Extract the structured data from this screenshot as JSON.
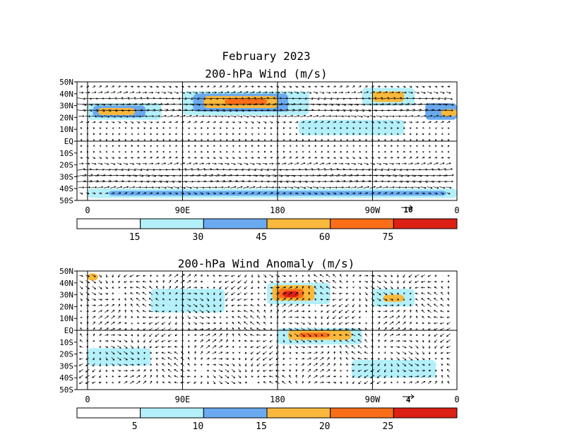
{
  "title": "February 2023",
  "colors": [
    "#ffffff",
    "#b4f0fa",
    "#6aaaf0",
    "#fab93c",
    "#fa6e19",
    "#dc2014",
    "#000000"
  ],
  "chart_data": [
    {
      "type": "heatmap",
      "title": "200-hPa Wind (m/s)",
      "x_ticks": [
        "0",
        "90E",
        "180",
        "90W",
        "0"
      ],
      "y_ticks": [
        "50N",
        "40N",
        "30N",
        "20N",
        "10N",
        "EQ",
        "10S",
        "20S",
        "30S",
        "40S",
        "50S"
      ],
      "vector_ref": "10",
      "colorbar_levels": [
        15,
        30,
        45,
        60,
        75
      ],
      "colorbar_labels": [
        "15",
        "30",
        "45",
        "60",
        "75"
      ],
      "regions": [
        {
          "lon": [
            0,
            70
          ],
          "lat": [
            18,
            32
          ],
          "level": 1
        },
        {
          "lon": [
            5,
            55
          ],
          "lat": [
            20,
            30
          ],
          "level": 2
        },
        {
          "lon": [
            10,
            45
          ],
          "lat": [
            22,
            28
          ],
          "level": 3
        },
        {
          "lon": [
            90,
            210
          ],
          "lat": [
            22,
            42
          ],
          "level": 1
        },
        {
          "lon": [
            100,
            190
          ],
          "lat": [
            25,
            40
          ],
          "level": 2
        },
        {
          "lon": [
            110,
            180
          ],
          "lat": [
            28,
            38
          ],
          "level": 3
        },
        {
          "lon": [
            130,
            170
          ],
          "lat": [
            31,
            36
          ],
          "level": 4
        },
        {
          "lon": [
            260,
            310
          ],
          "lat": [
            30,
            45
          ],
          "level": 1
        },
        {
          "lon": [
            270,
            300
          ],
          "lat": [
            33,
            42
          ],
          "level": 3
        },
        {
          "lon": [
            320,
            360
          ],
          "lat": [
            18,
            32
          ],
          "level": 2
        },
        {
          "lon": [
            335,
            360
          ],
          "lat": [
            21,
            27
          ],
          "level": 3
        },
        {
          "lon": [
            200,
            300
          ],
          "lat": [
            5,
            18
          ],
          "level": 1
        },
        {
          "lon": [
            0,
            360
          ],
          "lat": [
            -48,
            -40
          ],
          "level": 1
        },
        {
          "lon": [
            20,
            340
          ],
          "lat": [
            -46,
            -42
          ],
          "level": 2
        }
      ]
    },
    {
      "type": "heatmap",
      "title": "200-hPa Wind Anomaly (m/s)",
      "x_ticks": [
        "0",
        "90E",
        "180",
        "90W",
        "0"
      ],
      "y_ticks": [
        "50N",
        "40N",
        "30N",
        "20N",
        "10N",
        "EQ",
        "10S",
        "20S",
        "30S",
        "40S",
        "50S"
      ],
      "vector_ref": "4",
      "colorbar_levels": [
        5,
        10,
        15,
        20,
        25
      ],
      "colorbar_labels": [
        "5",
        "10",
        "15",
        "20",
        "25"
      ],
      "regions": [
        {
          "lon": [
            170,
            230
          ],
          "lat": [
            22,
            40
          ],
          "level": 1
        },
        {
          "lon": [
            175,
            215
          ],
          "lat": [
            25,
            38
          ],
          "level": 3
        },
        {
          "lon": [
            180,
            205
          ],
          "lat": [
            27,
            35
          ],
          "level": 4
        },
        {
          "lon": [
            185,
            200
          ],
          "lat": [
            28,
            33
          ],
          "level": 5
        },
        {
          "lon": [
            180,
            260
          ],
          "lat": [
            -12,
            2
          ],
          "level": 1
        },
        {
          "lon": [
            190,
            250
          ],
          "lat": [
            -8,
            0
          ],
          "level": 3
        },
        {
          "lon": [
            200,
            230
          ],
          "lat": [
            -6,
            -2
          ],
          "level": 4
        },
        {
          "lon": [
            270,
            310
          ],
          "lat": [
            20,
            35
          ],
          "level": 1
        },
        {
          "lon": [
            280,
            300
          ],
          "lat": [
            24,
            30
          ],
          "level": 3
        },
        {
          "lon": [
            60,
            130
          ],
          "lat": [
            15,
            35
          ],
          "level": 1
        },
        {
          "lon": [
            0,
            60
          ],
          "lat": [
            -30,
            -15
          ],
          "level": 1
        },
        {
          "lon": [
            250,
            330
          ],
          "lat": [
            -40,
            -25
          ],
          "level": 1
        },
        {
          "lon": [
            350,
            360
          ],
          "lat": [
            42,
            48
          ],
          "level": 3
        },
        {
          "lon": [
            0,
            10
          ],
          "lat": [
            42,
            48
          ],
          "level": 3
        }
      ]
    }
  ]
}
